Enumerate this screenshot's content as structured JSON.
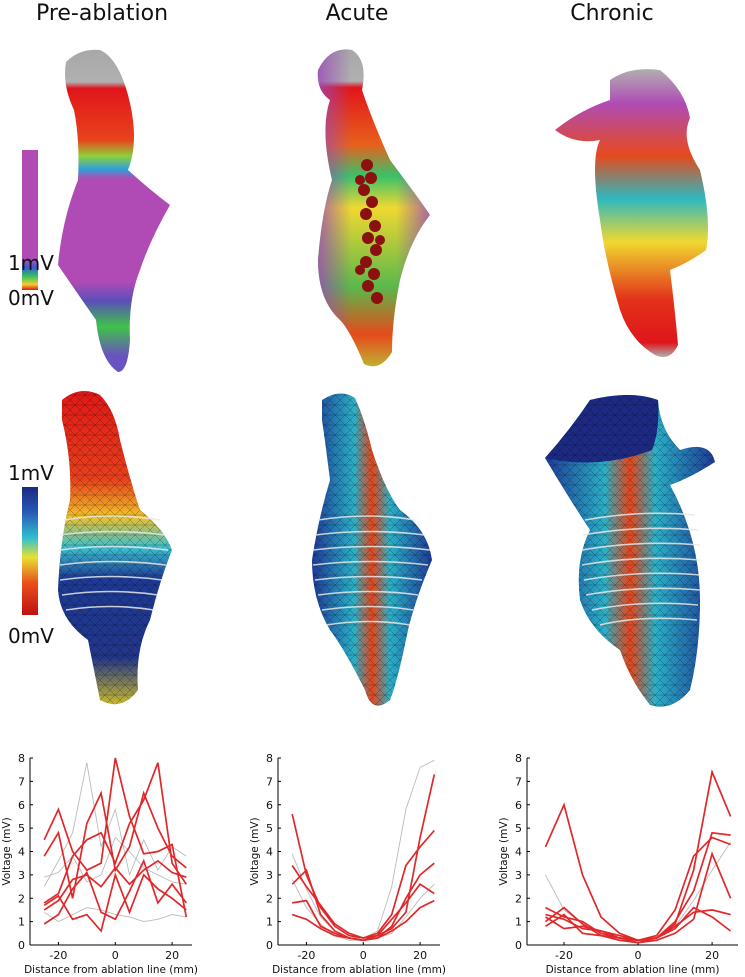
{
  "columns": [
    "Pre-ablation",
    "Acute",
    "Chronic"
  ],
  "colorbar_top": {
    "max_label": "1mV",
    "min_label": "0mV"
  },
  "colorbar_middle": {
    "max_label": "1mV",
    "min_label": "0mV"
  },
  "chart_data": [
    {
      "type": "line",
      "x_label": "Distance from ablation line (mm)",
      "y_label": "Voltage (mV)",
      "x": [
        -25,
        -20,
        -15,
        -10,
        -5,
        0,
        5,
        10,
        15,
        20,
        25
      ],
      "xlim": [
        -30,
        27
      ],
      "ylim": [
        0,
        8
      ],
      "xticks": [
        -20,
        0,
        20
      ],
      "yticks": [
        0,
        1,
        2,
        3,
        4,
        5,
        6,
        7,
        8
      ],
      "series": [
        {
          "color": "#bbbbbb",
          "values": [
            2.5,
            3.6,
            4.8,
            7.8,
            4.2,
            5.8,
            3.0,
            4.5,
            3.2,
            4.2,
            3.8
          ]
        },
        {
          "color": "#bbbbbb",
          "values": [
            2.9,
            3.1,
            3.8,
            2.7,
            3.0,
            4.6,
            4.0,
            3.3,
            3.0,
            2.7,
            2.6
          ]
        },
        {
          "color": "#bbbbbb",
          "values": [
            1.4,
            1.0,
            1.3,
            1.6,
            1.5,
            1.3,
            1.2,
            1.0,
            1.1,
            1.3,
            1.2
          ]
        },
        {
          "color": "#e0282a",
          "values": [
            4.5,
            5.8,
            4.0,
            3.2,
            3.5,
            8.0,
            5.5,
            3.9,
            4.0,
            4.3,
            1.2
          ]
        },
        {
          "color": "#e0282a",
          "values": [
            1.8,
            2.2,
            3.8,
            4.5,
            4.8,
            3.5,
            5.2,
            6.2,
            7.8,
            3.5,
            2.6
          ]
        },
        {
          "color": "#e0282a",
          "values": [
            1.5,
            1.9,
            2.8,
            3.0,
            2.5,
            3.3,
            2.6,
            3.2,
            3.6,
            3.1,
            2.9
          ]
        },
        {
          "color": "#e0282a",
          "values": [
            0.9,
            1.3,
            2.4,
            3.1,
            1.4,
            1.1,
            2.3,
            3.6,
            1.8,
            2.6,
            1.8
          ]
        },
        {
          "color": "#e0282a",
          "values": [
            1.7,
            2.1,
            1.1,
            1.3,
            0.6,
            3.0,
            1.4,
            3.0,
            2.4,
            2.0,
            1.5
          ]
        },
        {
          "color": "#e0282a",
          "values": [
            3.8,
            4.8,
            2.0,
            5.2,
            6.5,
            3.2,
            4.2,
            6.5,
            5.0,
            3.8,
            3.3
          ]
        }
      ]
    },
    {
      "type": "line",
      "x_label": "Distance from ablation line (mm)",
      "y_label": "Voltage (mV)",
      "x": [
        -25,
        -20,
        -15,
        -10,
        -5,
        0,
        5,
        10,
        15,
        20,
        25
      ],
      "xlim": [
        -30,
        27
      ],
      "ylim": [
        0,
        8
      ],
      "xticks": [
        -20,
        0,
        20
      ],
      "yticks": [
        0,
        1,
        2,
        3,
        4,
        5,
        6,
        7,
        8
      ],
      "series": [
        {
          "color": "#bbbbbb",
          "values": [
            3.9,
            2.4,
            1.2,
            0.6,
            0.3,
            0.3,
            0.6,
            2.5,
            5.8,
            7.6,
            7.9
          ]
        },
        {
          "color": "#bbbbbb",
          "values": [
            2.8,
            1.6,
            0.9,
            0.4,
            0.2,
            0.2,
            0.3,
            0.5,
            1.2,
            2.0,
            2.6
          ]
        },
        {
          "color": "#e0282a",
          "values": [
            5.6,
            3.0,
            1.6,
            0.8,
            0.4,
            0.3,
            0.5,
            1.3,
            3.4,
            4.2,
            4.9
          ]
        },
        {
          "color": "#e0282a",
          "values": [
            2.6,
            3.2,
            1.3,
            0.6,
            0.3,
            0.2,
            0.3,
            0.8,
            2.0,
            3.0,
            3.5
          ]
        },
        {
          "color": "#e0282a",
          "values": [
            3.4,
            2.5,
            1.7,
            0.9,
            0.5,
            0.3,
            0.4,
            1.1,
            1.8,
            2.6,
            2.2
          ]
        },
        {
          "color": "#e0282a",
          "values": [
            1.8,
            1.9,
            0.8,
            0.5,
            0.3,
            0.2,
            0.4,
            0.7,
            1.4,
            4.6,
            7.3
          ]
        },
        {
          "color": "#e0282a",
          "values": [
            1.3,
            1.1,
            0.7,
            0.4,
            0.3,
            0.2,
            0.3,
            0.6,
            1.0,
            1.6,
            1.9
          ]
        }
      ]
    },
    {
      "type": "line",
      "x_label": "Distance from ablation line (mm)",
      "y_label": "Voltage (mV)",
      "x": [
        -25,
        -20,
        -15,
        -10,
        -5,
        0,
        5,
        10,
        15,
        20,
        25
      ],
      "xlim": [
        -30,
        27
      ],
      "ylim": [
        0,
        8
      ],
      "xticks": [
        -20,
        0,
        20
      ],
      "yticks": [
        0,
        1,
        2,
        3,
        4,
        5,
        6,
        7,
        8
      ],
      "series": [
        {
          "color": "#bbbbbb",
          "values": [
            3.0,
            1.5,
            0.9,
            0.5,
            0.3,
            0.2,
            0.3,
            0.8,
            1.9,
            3.2,
            4.4
          ]
        },
        {
          "color": "#e0282a",
          "values": [
            4.2,
            6.0,
            3.0,
            1.2,
            0.5,
            0.2,
            0.4,
            1.5,
            3.8,
            4.6,
            4.3
          ]
        },
        {
          "color": "#e0282a",
          "values": [
            1.3,
            1.1,
            0.7,
            0.6,
            0.3,
            0.2,
            0.3,
            0.9,
            3.2,
            7.4,
            5.5
          ]
        },
        {
          "color": "#e0282a",
          "values": [
            1.0,
            1.6,
            0.9,
            0.4,
            0.3,
            0.2,
            0.3,
            1.0,
            2.3,
            4.8,
            4.7
          ]
        },
        {
          "color": "#e0282a",
          "values": [
            1.6,
            1.2,
            1.0,
            0.5,
            0.3,
            0.1,
            0.3,
            0.8,
            1.4,
            1.5,
            1.3
          ]
        },
        {
          "color": "#e0282a",
          "values": [
            0.8,
            1.3,
            0.5,
            0.4,
            0.2,
            0.1,
            0.2,
            0.5,
            1.1,
            3.9,
            2.0
          ]
        },
        {
          "color": "#e0282a",
          "values": [
            1.2,
            0.7,
            0.8,
            0.6,
            0.4,
            0.2,
            0.3,
            0.7,
            1.6,
            1.2,
            0.6
          ]
        }
      ]
    }
  ]
}
